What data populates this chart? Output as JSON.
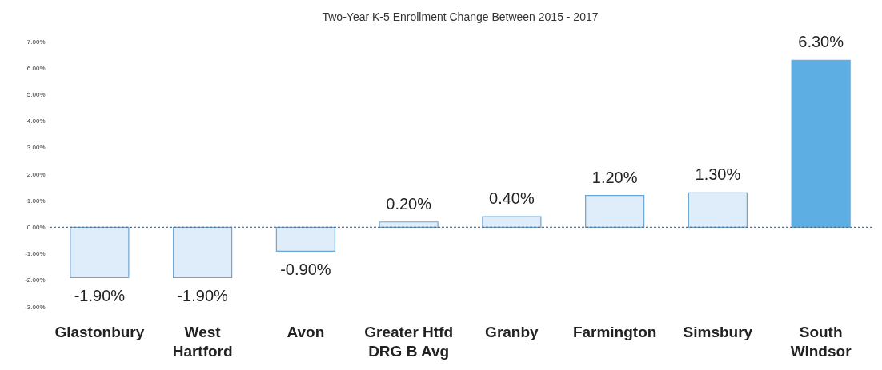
{
  "chart_data": {
    "type": "bar",
    "title": "Two-Year K-5 Enrollment Change Between 2015 - 2017",
    "categories": [
      "Glastonbury",
      "West Hartford",
      "Avon",
      "Greater Htfd DRG B Avg",
      "Granby",
      "Farmington",
      "Simsbury",
      "South Windsor"
    ],
    "values": [
      -1.9,
      -1.9,
      -0.9,
      0.2,
      0.4,
      1.2,
      1.3,
      6.3
    ],
    "value_labels": [
      "-1.90%",
      "-1.90%",
      "-0.90%",
      "0.20%",
      "0.40%",
      "1.20%",
      "1.30%",
      "6.30%"
    ],
    "colors": [
      "#deedf9",
      "#deedf9",
      "#deedf9",
      "#deedf9",
      "#deedf9",
      "#deedf9",
      "#deedf9",
      "#5dafe3"
    ],
    "ylim": [
      -3,
      7
    ],
    "yticks": [
      {
        "value": -3,
        "label": "-3.00%"
      },
      {
        "value": -2,
        "label": "-2.00%"
      },
      {
        "value": -1,
        "label": "-1.00%"
      },
      {
        "value": 0,
        "label": "0.00%"
      },
      {
        "value": 1,
        "label": "1.00%"
      },
      {
        "value": 2,
        "label": "2.00%"
      },
      {
        "value": 3,
        "label": "3.00%"
      },
      {
        "value": 4,
        "label": "4.00%"
      },
      {
        "value": 5,
        "label": "5.00%"
      },
      {
        "value": 6,
        "label": "6.00%"
      },
      {
        "value": 7,
        "label": "7.00%"
      }
    ],
    "ref_lines": [
      {
        "axis": "y",
        "value": 0
      }
    ],
    "grid": false
  }
}
